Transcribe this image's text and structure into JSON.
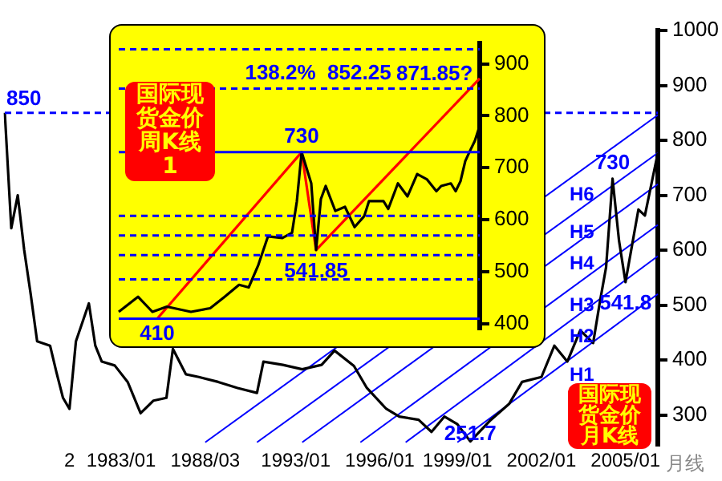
{
  "chart_data": [
    {
      "type": "line",
      "ylim": [
        245,
        1000
      ],
      "yticks": [
        300,
        400,
        500,
        600,
        700,
        800,
        900,
        1000
      ],
      "categories": [
        null,
        null,
        null,
        null,
        null,
        null,
        null,
        null,
        null,
        null,
        "2",
        null,
        null,
        null,
        null,
        null,
        null,
        null,
        "1983/01",
        null,
        null,
        null,
        null,
        null,
        null,
        null,
        null,
        null,
        null,
        null,
        null,
        "1988/03",
        null,
        null,
        null,
        null,
        null,
        null,
        null,
        null,
        null,
        null,
        null,
        null,
        null,
        "1993/01",
        null,
        null,
        null,
        null,
        null,
        null,
        null,
        null,
        null,
        null,
        null,
        null,
        "1996/01",
        null,
        null,
        null,
        null,
        null,
        null,
        null,
        null,
        null,
        null,
        null,
        "1999/01",
        null,
        null,
        null,
        null,
        null,
        null,
        null,
        null,
        null,
        null,
        null,
        null,
        "2002/01",
        null,
        null,
        null,
        null,
        null,
        null,
        null,
        null,
        null,
        null,
        null,
        null,
        "2005/01",
        null,
        null,
        null,
        null,
        null
      ],
      "series": [
        {
          "color": "#000000",
          "values": [
            850,
            640,
            700,
            600,
            520,
            434,
            null,
            426,
            377,
            331,
            311,
            434,
            null,
            503,
            426,
            397,
            null,
            390,
            null,
            360,
            null,
            303,
            null,
            326,
            null,
            331,
            420,
            null,
            374,
            null,
            369,
            null,
            null,
            360,
            null,
            null,
            349,
            null,
            null,
            340,
            397,
            null,
            null,
            391,
            null,
            null,
            383,
            null,
            null,
            391,
            null,
            417,
            null,
            null,
            389,
            null,
            349,
            null,
            null,
            311,
            null,
            297,
            null,
            null,
            291,
            null,
            269,
            null,
            297,
            null,
            283,
            null,
            251.7,
            null,
            null,
            289,
            null,
            null,
            320,
            null,
            360,
            null,
            null,
            369,
            null,
            426,
            null,
            397,
            null,
            454,
            null,
            431,
            503,
            569,
            730,
            617,
            541.8,
            null,
            674,
            663,
            null,
            777
          ]
        },
        {
          "name": "H1",
          "color": "#0000ff",
          "values": [
            null,
            null,
            null,
            null,
            null,
            null,
            null,
            null,
            null,
            null,
            null,
            null,
            null,
            null,
            null,
            null,
            null,
            null,
            null,
            null,
            null,
            null,
            null,
            null,
            null,
            null,
            null,
            null,
            null,
            null,
            null,
            null,
            null,
            null,
            null,
            null,
            null,
            null,
            null,
            null,
            null,
            null,
            null,
            null,
            null,
            null,
            null,
            null,
            null,
            null,
            null,
            null,
            null,
            null,
            null,
            null,
            null,
            null,
            null,
            null,
            null,
            null,
            null,
            null,
            null,
            null,
            null,
            null,
            null,
            null,
            250,
            null,
            null,
            null,
            null,
            null,
            null,
            null,
            null,
            null,
            null,
            null,
            null,
            null,
            null,
            null,
            null,
            null,
            null,
            null,
            null,
            null,
            null,
            null,
            null,
            null,
            null,
            null,
            null,
            null,
            null,
            520
          ]
        },
        {
          "name": "H2",
          "color": "#0000ff",
          "values": [
            null,
            null,
            null,
            null,
            null,
            null,
            null,
            null,
            null,
            null,
            null,
            null,
            null,
            null,
            null,
            null,
            null,
            null,
            null,
            null,
            null,
            null,
            null,
            null,
            null,
            null,
            null,
            null,
            null,
            null,
            null,
            null,
            null,
            null,
            null,
            null,
            null,
            null,
            null,
            null,
            null,
            null,
            null,
            null,
            null,
            null,
            null,
            null,
            null,
            null,
            null,
            null,
            null,
            null,
            null,
            null,
            null,
            null,
            null,
            null,
            null,
            null,
            250,
            null,
            null,
            null,
            null,
            null,
            null,
            null,
            null,
            null,
            null,
            null,
            null,
            null,
            null,
            null,
            null,
            null,
            null,
            null,
            null,
            null,
            null,
            null,
            null,
            null,
            null,
            null,
            null,
            null,
            null,
            null,
            null,
            null,
            null,
            null,
            null,
            null,
            null,
            589
          ]
        },
        {
          "name": "H3",
          "color": "#0000ff",
          "values": [
            null,
            null,
            null,
            null,
            null,
            null,
            null,
            null,
            null,
            null,
            null,
            null,
            null,
            null,
            null,
            null,
            null,
            null,
            null,
            null,
            null,
            null,
            null,
            null,
            null,
            null,
            null,
            null,
            null,
            null,
            null,
            null,
            null,
            null,
            null,
            null,
            null,
            null,
            null,
            null,
            null,
            null,
            null,
            null,
            null,
            null,
            null,
            null,
            null,
            null,
            null,
            null,
            null,
            null,
            null,
            250,
            null,
            null,
            null,
            null,
            null,
            null,
            null,
            null,
            null,
            null,
            null,
            null,
            null,
            null,
            null,
            null,
            null,
            null,
            null,
            null,
            null,
            null,
            null,
            null,
            null,
            null,
            null,
            null,
            null,
            null,
            null,
            null,
            null,
            null,
            null,
            null,
            null,
            null,
            null,
            null,
            null,
            null,
            null,
            null,
            null,
            646
          ]
        },
        {
          "name": "H4",
          "color": "#0000ff",
          "values": [
            null,
            null,
            null,
            null,
            null,
            null,
            null,
            null,
            null,
            null,
            null,
            null,
            null,
            null,
            null,
            null,
            null,
            null,
            null,
            null,
            null,
            null,
            null,
            null,
            null,
            null,
            null,
            null,
            null,
            null,
            null,
            null,
            null,
            null,
            null,
            null,
            null,
            null,
            null,
            null,
            null,
            null,
            null,
            null,
            null,
            null,
            250,
            null,
            null,
            null,
            null,
            null,
            null,
            null,
            null,
            null,
            null,
            null,
            null,
            null,
            null,
            null,
            null,
            null,
            null,
            null,
            null,
            null,
            null,
            null,
            null,
            null,
            null,
            null,
            null,
            null,
            null,
            null,
            null,
            null,
            null,
            null,
            null,
            null,
            null,
            null,
            null,
            null,
            null,
            null,
            null,
            null,
            null,
            null,
            null,
            null,
            null,
            null,
            null,
            null,
            null,
            720
          ]
        },
        {
          "name": "H5",
          "color": "#0000ff",
          "values": [
            null,
            null,
            null,
            null,
            null,
            null,
            null,
            null,
            null,
            null,
            null,
            null,
            null,
            null,
            null,
            null,
            null,
            null,
            null,
            null,
            null,
            null,
            null,
            null,
            null,
            null,
            null,
            null,
            null,
            null,
            null,
            null,
            null,
            null,
            null,
            null,
            null,
            null,
            null,
            250,
            null,
            null,
            null,
            null,
            null,
            null,
            null,
            null,
            null,
            null,
            null,
            null,
            null,
            null,
            null,
            null,
            null,
            null,
            null,
            null,
            null,
            null,
            null,
            null,
            null,
            null,
            null,
            null,
            null,
            null,
            null,
            null,
            null,
            null,
            null,
            null,
            null,
            null,
            null,
            null,
            null,
            null,
            null,
            null,
            null,
            null,
            null,
            null,
            null,
            null,
            null,
            null,
            null,
            null,
            null,
            null,
            null,
            null,
            null,
            null,
            null,
            777
          ]
        },
        {
          "name": "H6",
          "color": "#0000ff",
          "values": [
            null,
            null,
            null,
            null,
            null,
            null,
            null,
            null,
            null,
            null,
            null,
            null,
            null,
            null,
            null,
            null,
            null,
            null,
            null,
            null,
            null,
            null,
            null,
            null,
            null,
            null,
            null,
            null,
            null,
            null,
            null,
            250,
            null,
            null,
            null,
            null,
            null,
            null,
            null,
            null,
            null,
            null,
            null,
            null,
            null,
            null,
            null,
            null,
            null,
            null,
            null,
            null,
            null,
            null,
            null,
            null,
            null,
            null,
            null,
            null,
            null,
            null,
            null,
            null,
            null,
            null,
            null,
            null,
            null,
            null,
            null,
            null,
            null,
            null,
            null,
            null,
            null,
            null,
            null,
            null,
            null,
            null,
            null,
            null,
            null,
            null,
            null,
            null,
            null,
            null,
            null,
            null,
            null,
            null,
            null,
            null,
            null,
            null,
            null,
            null,
            null,
            846
          ]
        }
      ],
      "ref_lines": [
        {
          "axis": "y",
          "value": 850,
          "label": "850",
          "color": "#0000ff",
          "line_style": "dashed"
        }
      ],
      "annotations": [
        "国际现货金价月K线",
        "月线",
        {
          "text": "730",
          "y": 730
        },
        {
          "text": "541.8",
          "y": 541.8
        },
        {
          "text": "251.7",
          "y": 251.7
        }
      ],
      "grid": false,
      "legend": false
    },
    {
      "type": "line",
      "ylim": [
        390,
        940
      ],
      "yticks": [
        400,
        500,
        600,
        700,
        800,
        900
      ],
      "tick_labels": "y",
      "categories": [
        null,
        null,
        null,
        null,
        null,
        null,
        null,
        null,
        null,
        null,
        null,
        null,
        null,
        null,
        null,
        null,
        null,
        null,
        null,
        null,
        null,
        null,
        null,
        null,
        null,
        null,
        null,
        null,
        null,
        null,
        null,
        null,
        null,
        null,
        null,
        null,
        null,
        null,
        null,
        null,
        null,
        null,
        null,
        null,
        null,
        null,
        null,
        null,
        null,
        null,
        null,
        null,
        null,
        null,
        null,
        null,
        null,
        null,
        null,
        null,
        null,
        null,
        null,
        null,
        null,
        null,
        null,
        null,
        null,
        null,
        null,
        null,
        null,
        null,
        null,
        null
      ],
      "series": [
        {
          "color": "#000000",
          "values": [
            423,
            null,
            null,
            null,
            452,
            null,
            null,
            423,
            null,
            null,
            433,
            null,
            null,
            null,
            null,
            423,
            null,
            null,
            null,
            430,
            null,
            null,
            452,
            null,
            null,
            475,
            null,
            470,
            null,
            513,
            null,
            568,
            null,
            null,
            565,
            null,
            575,
            635,
            730,
            null,
            670,
            541.85,
            640,
            665,
            null,
            617,
            null,
            625,
            null,
            586,
            null,
            607,
            636,
            null,
            null,
            636,
            621,
            null,
            670,
            null,
            645,
            null,
            688,
            null,
            678,
            null,
            655,
            665,
            null,
            670,
            655,
            674,
            713,
            733,
            752,
            781
          ]
        },
        {
          "color": "#ff0000",
          "values": [
            null,
            null,
            null,
            null,
            null,
            null,
            null,
            null,
            410,
            null,
            null,
            null,
            null,
            null,
            null,
            null,
            null,
            null,
            null,
            null,
            null,
            null,
            null,
            null,
            null,
            null,
            null,
            null,
            null,
            null,
            null,
            null,
            null,
            null,
            null,
            null,
            null,
            null,
            730,
            null,
            null,
            541.85,
            null,
            null,
            null,
            null,
            null,
            null,
            null,
            null,
            null,
            null,
            null,
            null,
            null,
            null,
            null,
            null,
            null,
            null,
            null,
            null,
            null,
            null,
            null,
            null,
            null,
            null,
            null,
            null,
            null,
            null,
            null,
            null,
            null,
            871.85
          ]
        }
      ],
      "ref_lines": [
        {
          "axis": "y",
          "value": 927.76,
          "color": "#0000ff",
          "line_style": "dashed"
        },
        {
          "axis": "y",
          "value": 852.25,
          "color": "#0000ff",
          "line_style": "dashed"
        },
        {
          "axis": "y",
          "value": 730,
          "color": "#0000ff",
          "line_style": "solid"
        },
        {
          "axis": "y",
          "value": 607.76,
          "color": "#0000ff",
          "line_style": "dashed"
        },
        {
          "axis": "y",
          "value": 570,
          "color": "#0000ff",
          "line_style": "dashed"
        },
        {
          "axis": "y",
          "value": 532.24,
          "color": "#0000ff",
          "line_style": "dashed"
        },
        {
          "axis": "y",
          "value": 485.52,
          "color": "#0000ff",
          "line_style": "dashed"
        },
        {
          "axis": "y",
          "value": 410,
          "color": "#0000ff",
          "line_style": "solid"
        }
      ],
      "annotations": [
        "国际现货金价周K线1",
        "871.85?",
        {
          "text": "138.2%  852.25",
          "y": 852.25
        },
        {
          "text": "730",
          "y": 730
        },
        {
          "text": "541.85",
          "y": 541.85
        },
        {
          "text": "410",
          "y": 410
        }
      ],
      "grid": false,
      "legend": false
    }
  ]
}
